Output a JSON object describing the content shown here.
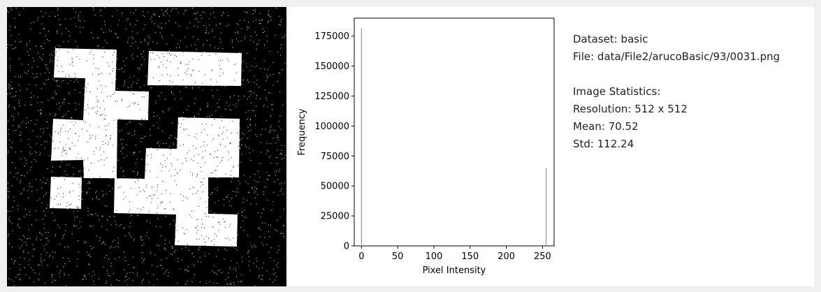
{
  "marker_image": {
    "background": "#000000",
    "foreground": "#ffffff",
    "noise": "salt-and-pepper"
  },
  "chart_data": {
    "type": "bar",
    "xlabel": "Pixel Intensity",
    "ylabel": "Frequency",
    "xlim": [
      -10,
      266
    ],
    "ylim": [
      0,
      190000
    ],
    "xticks": [
      0,
      50,
      100,
      150,
      200,
      250
    ],
    "yticks": [
      0,
      25000,
      50000,
      75000,
      100000,
      125000,
      150000,
      175000
    ],
    "bars": [
      {
        "x": 0,
        "y": 182000
      },
      {
        "x": 255,
        "y": 65000
      }
    ],
    "bar_color": "#999999"
  },
  "info": {
    "dataset": "Dataset: basic",
    "file": "File: data/File2/arucoBasic/93/0031.png",
    "stats_heading": "Image Statistics:",
    "resolution": "Resolution: 512 x 512",
    "mean": "Mean: 70.52",
    "std": "Std: 112.24"
  }
}
